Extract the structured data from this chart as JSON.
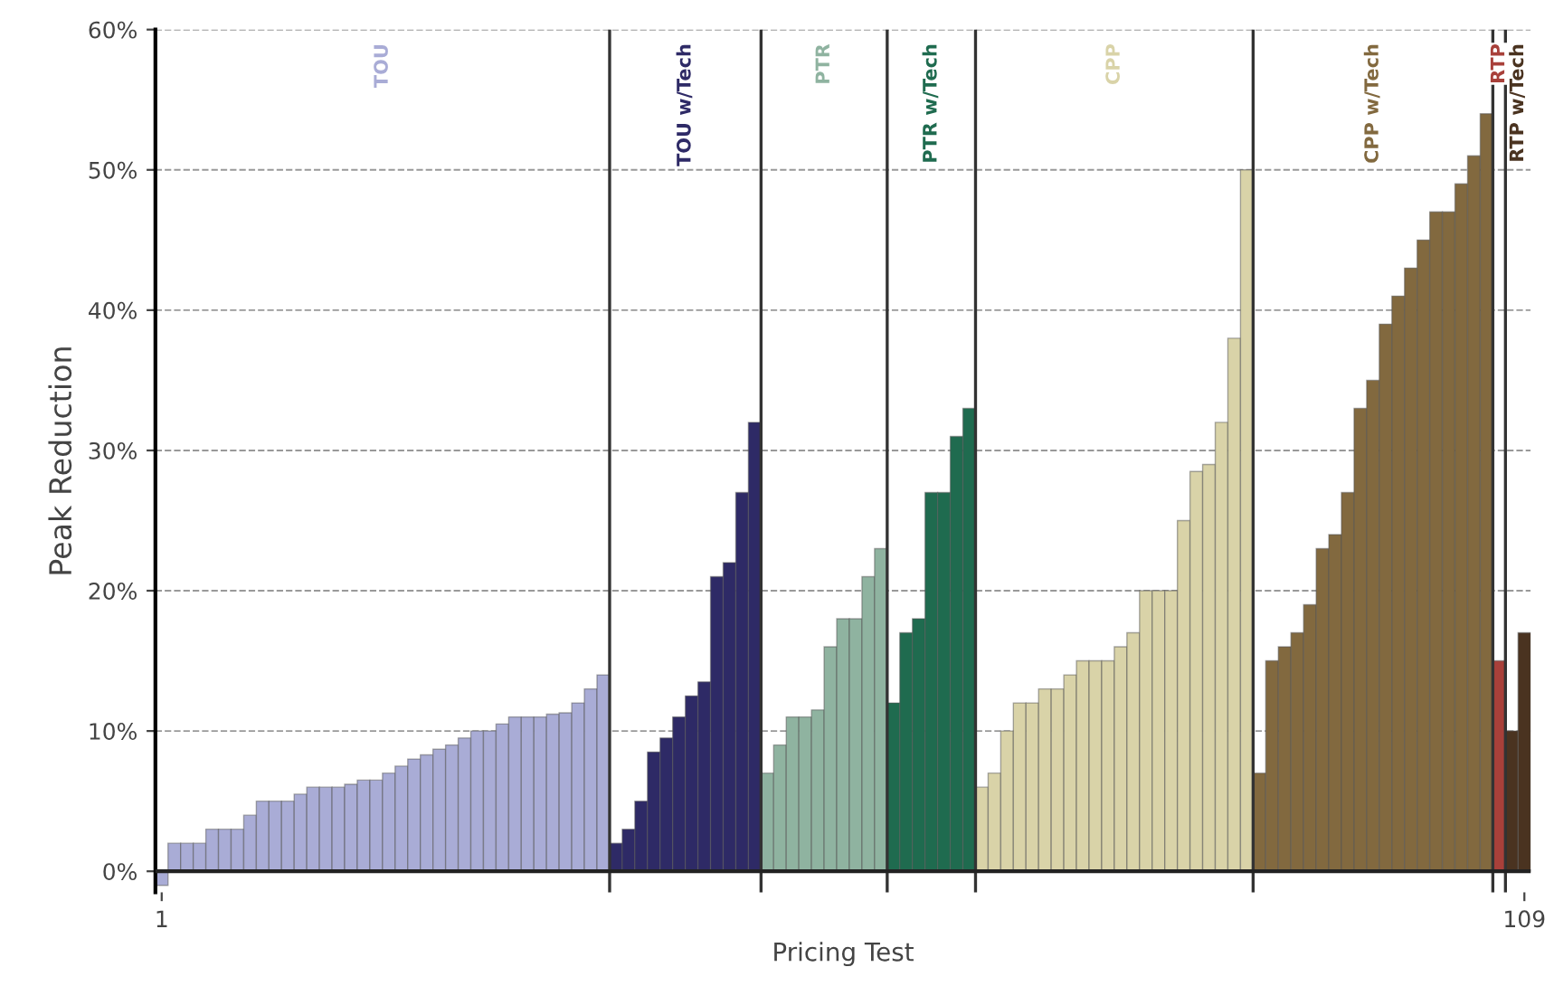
{
  "chart_data": {
    "type": "bar",
    "xlabel": "Pricing Test",
    "ylabel": "Peak Reduction",
    "xlim": [
      0.5,
      109.5
    ],
    "xticks": [
      1,
      109
    ],
    "ylim": [
      -1.5,
      60
    ],
    "yticks": [
      {
        "value": 0,
        "label": "0%"
      },
      {
        "value": 10,
        "label": "10%"
      },
      {
        "value": 20,
        "label": "20%"
      },
      {
        "value": 30,
        "label": "30%"
      },
      {
        "value": 40,
        "label": "40%"
      },
      {
        "value": 50,
        "label": "50%"
      },
      {
        "value": 60,
        "label": "60%"
      }
    ],
    "grid": "y",
    "legend": false,
    "series": [
      {
        "name": "TOU",
        "color": "#a9acd6",
        "x": [
          1,
          2,
          3,
          4,
          5,
          6,
          7,
          8,
          9,
          10,
          11,
          12,
          13,
          14,
          15,
          16,
          17,
          18,
          19,
          20,
          21,
          22,
          23,
          24,
          25,
          26,
          27,
          28,
          29,
          30,
          31,
          32,
          33,
          34,
          35,
          36
        ],
        "values": [
          -1,
          2,
          2,
          2,
          3,
          3,
          3,
          4,
          5,
          5,
          5,
          5.5,
          6,
          6,
          6,
          6.2,
          6.5,
          6.5,
          7,
          7.5,
          8,
          8.3,
          8.7,
          9,
          9.5,
          10,
          10,
          10.5,
          11,
          11,
          11,
          11.2,
          11.3,
          12,
          13,
          14
        ]
      },
      {
        "name": "TOU w/Tech",
        "color": "#2e2a66",
        "x": [
          37,
          38,
          39,
          40,
          41,
          42,
          43,
          44,
          45,
          46,
          47,
          48
        ],
        "values": [
          2,
          3,
          5,
          8.5,
          9.5,
          11,
          12.5,
          13.5,
          21,
          22,
          27,
          32
        ]
      },
      {
        "name": "PTR",
        "color": "#8fb3a0",
        "x": [
          49,
          50,
          51,
          52,
          53,
          54,
          55,
          56,
          57,
          58
        ],
        "values": [
          7,
          9,
          11,
          11,
          11.5,
          16,
          18,
          18,
          21,
          23
        ]
      },
      {
        "name": "PTR w/Tech",
        "color": "#1f6b4f",
        "x": [
          59,
          60,
          61,
          62,
          63,
          64,
          65
        ],
        "values": [
          12,
          17,
          18,
          27,
          27,
          31,
          33
        ]
      },
      {
        "name": "CPP",
        "color": "#d9d3a8",
        "x": [
          66,
          67,
          68,
          69,
          70,
          71,
          72,
          73,
          74,
          75,
          76,
          77,
          78,
          79,
          80,
          81,
          82,
          83,
          84,
          85,
          86,
          87
        ],
        "values": [
          6,
          7,
          10,
          12,
          12,
          13,
          13,
          14,
          15,
          15,
          15,
          16,
          17,
          20,
          20,
          20,
          25,
          28.5,
          29,
          32,
          38,
          50
        ]
      },
      {
        "name": "CPP w/Tech",
        "color": "#82693f",
        "x": [
          88,
          89,
          90,
          91,
          92,
          93,
          94,
          95,
          96,
          97,
          98,
          99,
          100,
          101,
          102,
          103,
          104,
          105,
          106
        ],
        "values": [
          7,
          15,
          16,
          17,
          19,
          23,
          24,
          27,
          33,
          35,
          39,
          41,
          43,
          45,
          47,
          47,
          49,
          51,
          54
        ]
      },
      {
        "name": "RTP",
        "color": "#a8403a",
        "x": [
          107
        ],
        "values": [
          15
        ]
      },
      {
        "name": "RTP w/Tech",
        "color": "#4a3320",
        "x": [
          108,
          109
        ],
        "values": [
          10,
          17
        ]
      }
    ],
    "ref_lines": [
      {
        "axis": "x",
        "value": 36.5,
        "color": "#333333"
      },
      {
        "axis": "x",
        "value": 48.5,
        "color": "#333333"
      },
      {
        "axis": "x",
        "value": 58.5,
        "color": "#333333"
      },
      {
        "axis": "x",
        "value": 65.5,
        "color": "#333333"
      },
      {
        "axis": "x",
        "value": 87.5,
        "color": "#333333"
      },
      {
        "axis": "x",
        "value": 106.5,
        "color": "#333333"
      },
      {
        "axis": "x",
        "value": 107.5,
        "color": "#333333"
      }
    ]
  }
}
